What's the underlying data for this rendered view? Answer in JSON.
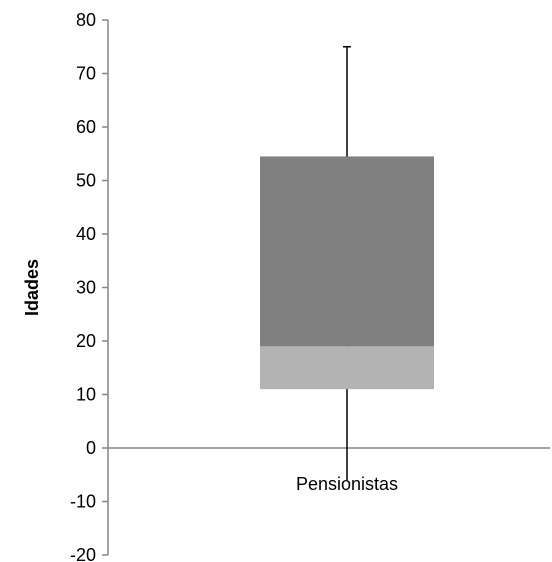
{
  "chart_data": {
    "type": "boxplot",
    "title": "",
    "xlabel": "",
    "ylabel": "Idades",
    "ylim": [
      -20,
      80
    ],
    "yticks": [
      -20,
      -10,
      0,
      10,
      20,
      30,
      40,
      50,
      60,
      70,
      80
    ],
    "categories": [
      "Pensionistas"
    ],
    "boxes": [
      {
        "category": "Pensionistas",
        "min": -6,
        "q1": 11,
        "median": 19,
        "q3": 54.5,
        "max": 75
      }
    ],
    "grid": false,
    "legend": "none",
    "colors": {
      "lower_box": "#b3b3b3",
      "upper_box": "#808080",
      "axis": "#868686",
      "whisker": "#000000"
    }
  }
}
